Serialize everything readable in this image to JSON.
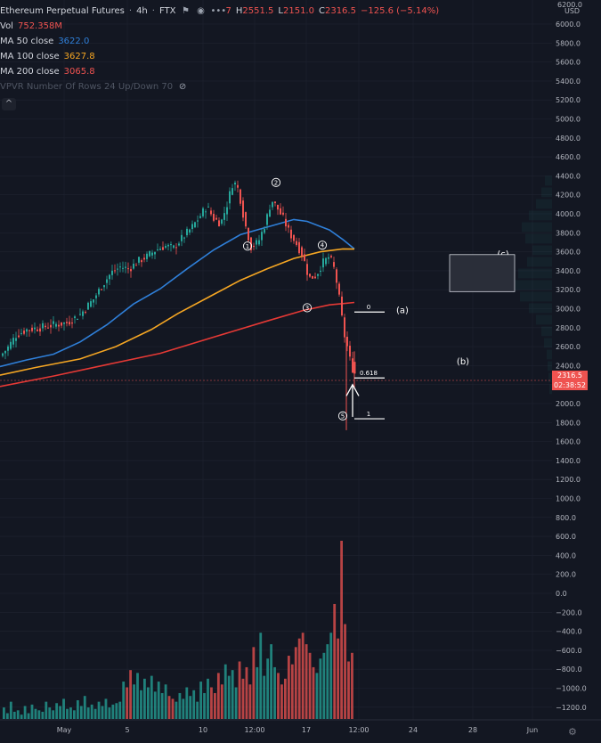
{
  "header": {
    "symbol": "Ethereum Perpetual Futures",
    "timeframe": "4h",
    "exchange": "FTX",
    "ohlc": {
      "o_label": "7",
      "h_label": "H",
      "h": "2551.5",
      "l_label": "L",
      "l": "2151.0",
      "c_label": "C",
      "c": "2316.5",
      "chg": "−125.6 (−5.14%)"
    }
  },
  "indicators": [
    {
      "label": "Vol",
      "value": "752.358M"
    },
    {
      "label": "MA 50 close",
      "value": "3622.0"
    },
    {
      "label": "MA 100 close",
      "value": "3627.8"
    },
    {
      "label": "MA 200 close",
      "value": "3065.8"
    },
    {
      "label": "VPVR Number Of Rows 24 Up/Down 70",
      "value": ""
    }
  ],
  "colors": {
    "background": "#131722",
    "up": "#26a69a",
    "down": "#ef5350",
    "ma50": "#2f7fd8",
    "ma100": "#f5a623",
    "ma200": "#e53935",
    "grid": "#1f2330",
    "axis_text": "#b2b5be"
  },
  "axis": {
    "currency": "USD",
    "top_partial": "6200.0",
    "current_price": "2316.5",
    "countdown": "02:38:52"
  },
  "chart_data": {
    "type": "candlestick",
    "price_axis": {
      "min": -1200,
      "max": 6000,
      "step": 200,
      "ticks": [
        "6000.0",
        "5800.0",
        "5600.0",
        "5400.0",
        "5200.0",
        "5000.0",
        "4800.0",
        "4600.0",
        "4400.0",
        "4200.0",
        "4000.0",
        "3800.0",
        "3600.0",
        "3400.0",
        "3200.0",
        "3000.0",
        "2800.0",
        "2600.0",
        "2400.0",
        "2200.0",
        "2000.0",
        "1800.0",
        "1600.0",
        "1400.0",
        "1200.0",
        "1000.0",
        "800.0",
        "600.0",
        "400.0",
        "200.0",
        "0.0",
        "−200.0",
        "−400.0",
        "−600.0",
        "−800.0",
        "−1000.0",
        "−1200.0"
      ]
    },
    "time_axis": [
      "May",
      "5",
      "10",
      "12:00",
      "17",
      "12:00",
      "24",
      "28",
      "Jun"
    ],
    "price_path": [
      [
        0,
        2500
      ],
      [
        8,
        2580
      ],
      [
        18,
        2720
      ],
      [
        30,
        2780
      ],
      [
        45,
        2800
      ],
      [
        60,
        2830
      ],
      [
        75,
        2850
      ],
      [
        90,
        2940
      ],
      [
        105,
        3100
      ],
      [
        115,
        3250
      ],
      [
        125,
        3380
      ],
      [
        135,
        3440
      ],
      [
        145,
        3420
      ],
      [
        155,
        3500
      ],
      [
        165,
        3550
      ],
      [
        175,
        3620
      ],
      [
        185,
        3660
      ],
      [
        195,
        3640
      ],
      [
        205,
        3750
      ],
      [
        215,
        3850
      ],
      [
        225,
        3980
      ],
      [
        232,
        4080
      ],
      [
        240,
        3950
      ],
      [
        248,
        3900
      ],
      [
        255,
        4100
      ],
      [
        262,
        4350
      ],
      [
        268,
        4250
      ],
      [
        275,
        3900
      ],
      [
        282,
        3650
      ],
      [
        290,
        3700
      ],
      [
        298,
        3900
      ],
      [
        305,
        4150
      ],
      [
        312,
        4050
      ],
      [
        318,
        3950
      ],
      [
        325,
        3800
      ],
      [
        332,
        3700
      ],
      [
        340,
        3560
      ],
      [
        347,
        3320
      ],
      [
        355,
        3350
      ],
      [
        362,
        3480
      ],
      [
        370,
        3550
      ],
      [
        376,
        3400
      ],
      [
        382,
        3050
      ],
      [
        386,
        2750
      ],
      [
        390,
        2600
      ],
      [
        394,
        2420
      ],
      [
        398,
        2316
      ]
    ],
    "moving_averages": [
      {
        "name": "MA 50 close",
        "points": [
          [
            0,
            2390
          ],
          [
            30,
            2460
          ],
          [
            60,
            2520
          ],
          [
            90,
            2650
          ],
          [
            120,
            2830
          ],
          [
            150,
            3050
          ],
          [
            180,
            3210
          ],
          [
            210,
            3420
          ],
          [
            240,
            3620
          ],
          [
            270,
            3780
          ],
          [
            300,
            3860
          ],
          [
            330,
            3940
          ],
          [
            345,
            3920
          ],
          [
            370,
            3830
          ],
          [
            385,
            3730
          ],
          [
            398,
            3630
          ]
        ]
      },
      {
        "name": "MA 100 close",
        "points": [
          [
            0,
            2300
          ],
          [
            40,
            2380
          ],
          [
            90,
            2470
          ],
          [
            130,
            2600
          ],
          [
            170,
            2780
          ],
          [
            200,
            2950
          ],
          [
            240,
            3150
          ],
          [
            270,
            3300
          ],
          [
            300,
            3420
          ],
          [
            330,
            3530
          ],
          [
            360,
            3600
          ],
          [
            385,
            3630
          ],
          [
            398,
            3628
          ]
        ]
      },
      {
        "name": "MA 200 close",
        "points": [
          [
            0,
            2180
          ],
          [
            60,
            2290
          ],
          [
            120,
            2410
          ],
          [
            180,
            2530
          ],
          [
            240,
            2700
          ],
          [
            300,
            2870
          ],
          [
            340,
            2980
          ],
          [
            370,
            3040
          ],
          [
            398,
            3066
          ]
        ]
      }
    ],
    "volume": [
      40,
      20,
      60,
      25,
      30,
      15,
      45,
      20,
      50,
      35,
      30,
      25,
      60,
      40,
      30,
      55,
      45,
      70,
      35,
      40,
      30,
      65,
      45,
      80,
      40,
      50,
      35,
      60,
      45,
      70,
      40,
      50,
      55,
      60,
      130,
      110,
      170,
      120,
      160,
      100,
      140,
      110,
      150,
      95,
      130,
      90,
      120,
      80,
      70,
      60,
      90,
      70,
      110,
      80,
      100,
      60,
      130,
      90,
      140,
      110,
      90,
      160,
      120,
      190,
      150,
      170,
      110,
      200,
      140,
      180,
      120,
      250,
      180,
      300,
      150,
      210,
      260,
      180,
      160,
      120,
      140,
      220,
      190,
      250,
      280,
      300,
      260,
      230,
      180,
      160,
      210,
      230,
      260,
      300,
      400,
      280,
      620,
      330,
      200,
      230
    ],
    "volume_scale_max": 620,
    "annotations": {
      "wave_labels": [
        {
          "label": "1",
          "x": 278,
          "price": 3660
        },
        {
          "label": "2",
          "x": 310,
          "price": 4330
        },
        {
          "label": "3",
          "x": 345,
          "price": 3010
        },
        {
          "label": "4",
          "x": 362,
          "price": 3670
        },
        {
          "label": "5",
          "x": 385,
          "price": 1870
        }
      ],
      "fib_levels": [
        {
          "label": "0",
          "price": 2965
        },
        {
          "label": "0.618",
          "price": 2270
        },
        {
          "label": "1",
          "price": 1840
        }
      ],
      "abc_labels": [
        {
          "label": "(a)",
          "price": 2990
        },
        {
          "label": "(b)",
          "price": 2450
        },
        {
          "label": "(c)",
          "price": 3580
        }
      ],
      "target_box": {
        "price_top": 3570,
        "price_bottom": 3180
      }
    }
  }
}
